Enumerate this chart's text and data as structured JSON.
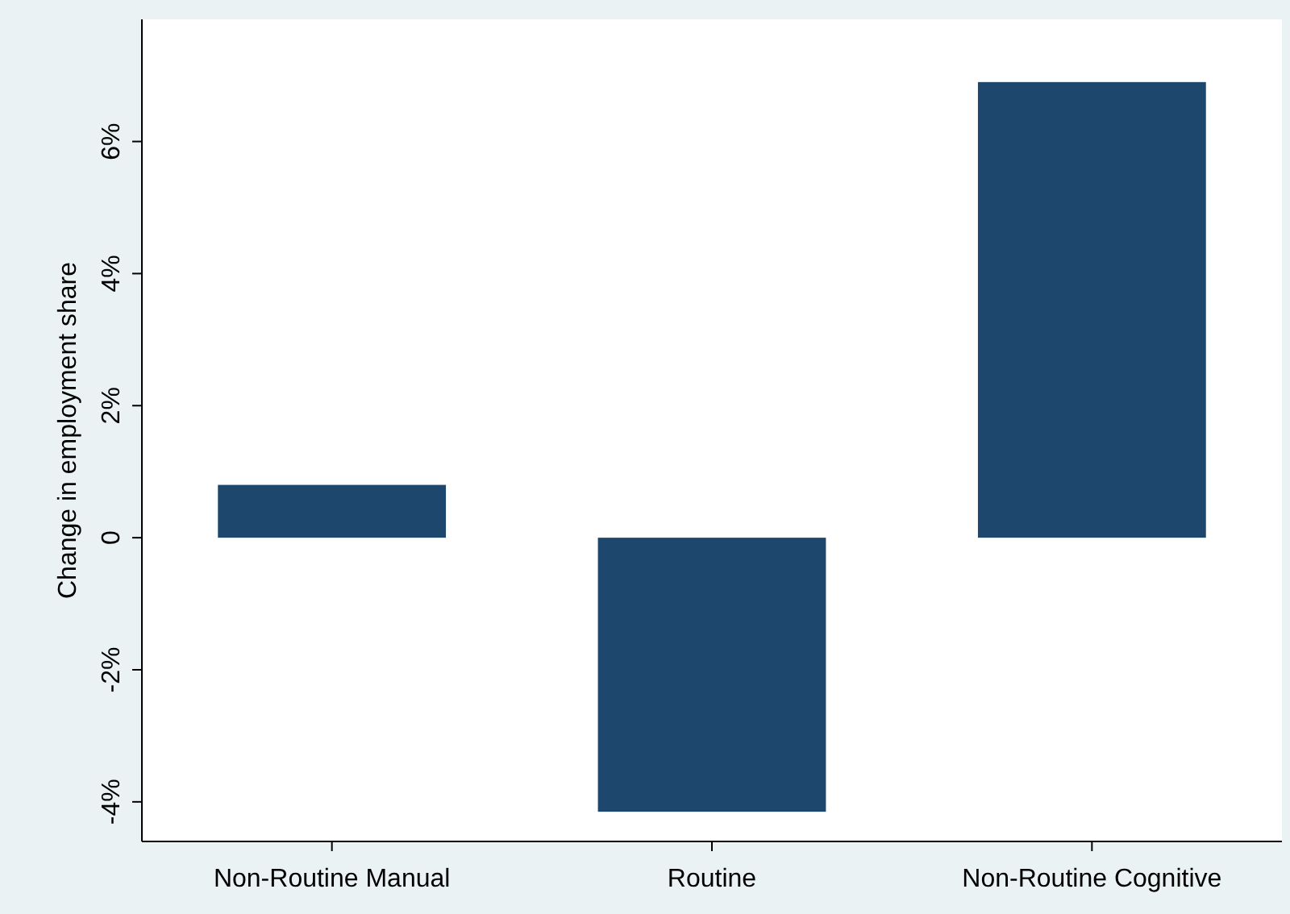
{
  "chart_data": {
    "type": "bar",
    "ylabel": "Change in employment share",
    "categories": [
      "Non-Routine Manual",
      "Routine",
      "Non-Routine Cognitive"
    ],
    "values": [
      0.8,
      -4.15,
      6.9
    ],
    "color": "#1d476d",
    "ylim": [
      -4.6,
      7.85
    ],
    "yticks": [
      {
        "value": -4,
        "label": "-4%"
      },
      {
        "value": -2,
        "label": "-2%"
      },
      0,
      {
        "value": 2,
        "label": "2%"
      },
      {
        "value": 4,
        "label": "4%"
      },
      {
        "value": 6,
        "label": "6%"
      }
    ],
    "grid": false
  }
}
